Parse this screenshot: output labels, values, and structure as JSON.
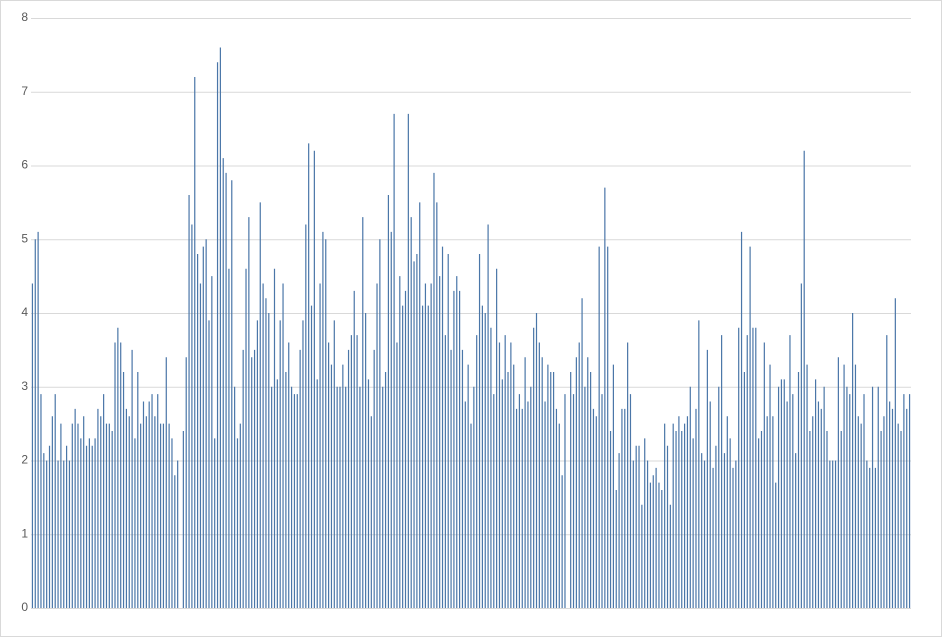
{
  "chart_data": {
    "type": "bar",
    "color": "#4a76a8",
    "ylim": [
      0,
      8
    ],
    "yticks": [
      0,
      1,
      2,
      3,
      4,
      5,
      6,
      7,
      8
    ],
    "grid": true,
    "values": [
      4.4,
      5.0,
      5.1,
      2.9,
      2.1,
      2.0,
      2.2,
      2.6,
      2.9,
      2.0,
      2.5,
      2.0,
      2.2,
      2.0,
      2.5,
      2.7,
      2.5,
      2.3,
      2.6,
      2.2,
      2.3,
      2.2,
      2.3,
      2.7,
      2.6,
      2.9,
      2.5,
      2.5,
      2.4,
      3.6,
      3.8,
      3.6,
      3.2,
      2.7,
      2.6,
      3.5,
      2.3,
      3.2,
      2.5,
      2.8,
      2.6,
      2.8,
      2.9,
      2.6,
      2.9,
      2.5,
      2.5,
      3.4,
      2.5,
      2.3,
      1.8,
      2.0,
      0,
      2.4,
      3.4,
      5.6,
      5.2,
      7.2,
      4.8,
      4.4,
      4.9,
      5.0,
      3.9,
      4.5,
      2.3,
      7.4,
      7.6,
      6.1,
      5.9,
      4.6,
      5.8,
      3.0,
      2.3,
      2.5,
      3.5,
      4.6,
      5.3,
      3.4,
      3.5,
      3.9,
      5.5,
      4.4,
      4.2,
      4.0,
      3.0,
      4.6,
      3.1,
      3.9,
      4.4,
      3.2,
      3.6,
      3.0,
      2.9,
      2.9,
      3.5,
      3.9,
      5.2,
      6.3,
      4.1,
      6.2,
      3.1,
      4.4,
      5.1,
      5.0,
      3.6,
      3.3,
      3.9,
      3.0,
      3.0,
      3.3,
      3.0,
      3.5,
      3.7,
      4.3,
      3.7,
      3.0,
      5.3,
      4.0,
      3.1,
      2.6,
      3.5,
      4.4,
      5.0,
      3.0,
      3.2,
      5.6,
      5.1,
      6.7,
      3.6,
      4.5,
      4.1,
      4.3,
      6.7,
      5.3,
      4.7,
      4.8,
      5.5,
      4.1,
      4.4,
      4.1,
      4.4,
      5.9,
      5.5,
      4.5,
      4.9,
      3.7,
      4.8,
      3.5,
      4.3,
      4.5,
      4.3,
      3.5,
      2.8,
      3.3,
      2.5,
      3.0,
      3.7,
      4.8,
      4.1,
      4.0,
      5.2,
      3.8,
      2.9,
      4.6,
      3.6,
      3.1,
      3.7,
      3.2,
      3.6,
      3.3,
      2.7,
      2.9,
      2.7,
      3.4,
      2.8,
      3.0,
      3.8,
      4.0,
      3.6,
      3.4,
      2.8,
      3.3,
      3.2,
      3.2,
      2.7,
      2.5,
      1.8,
      2.9,
      0,
      3.2,
      2.9,
      3.4,
      3.6,
      4.2,
      3.0,
      3.4,
      3.2,
      2.7,
      2.6,
      4.9,
      2.9,
      5.7,
      4.9,
      2.4,
      3.3,
      1.6,
      2.1,
      2.7,
      2.7,
      3.6,
      2.9,
      2.0,
      2.2,
      2.2,
      1.4,
      2.3,
      2.0,
      1.7,
      1.8,
      1.9,
      1.7,
      1.6,
      2.5,
      2.2,
      1.4,
      2.5,
      2.4,
      2.6,
      2.4,
      2.5,
      2.6,
      3.0,
      2.3,
      2.7,
      3.9,
      2.1,
      2.0,
      3.5,
      2.8,
      1.9,
      2.2,
      3.0,
      3.7,
      2.1,
      2.6,
      2.3,
      1.9,
      2.0,
      3.8,
      5.1,
      3.2,
      3.7,
      4.9,
      3.8,
      3.8,
      2.3,
      2.4,
      3.6,
      2.6,
      3.3,
      2.6,
      1.7,
      3.0,
      3.1,
      3.1,
      2.8,
      3.7,
      2.9,
      2.1,
      3.2,
      4.4,
      6.2,
      3.3,
      2.4,
      2.6,
      3.1,
      2.8,
      2.7,
      3.0,
      2.4,
      2.0,
      2.0,
      2.0,
      3.4,
      2.4,
      3.3,
      3.0,
      2.9,
      4.0,
      3.3,
      2.6,
      2.5,
      2.9,
      2.0,
      1.9,
      3.0,
      1.9,
      3.0,
      2.4,
      2.6,
      3.7,
      2.8,
      2.7,
      4.2,
      2.5,
      2.4,
      2.9,
      2.7,
      2.9
    ]
  }
}
